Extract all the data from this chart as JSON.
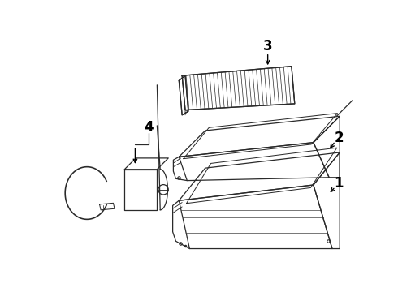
{
  "background_color": "#ffffff",
  "line_color": "#2a2a2a",
  "label_color": "#000000",
  "lw": 0.9
}
